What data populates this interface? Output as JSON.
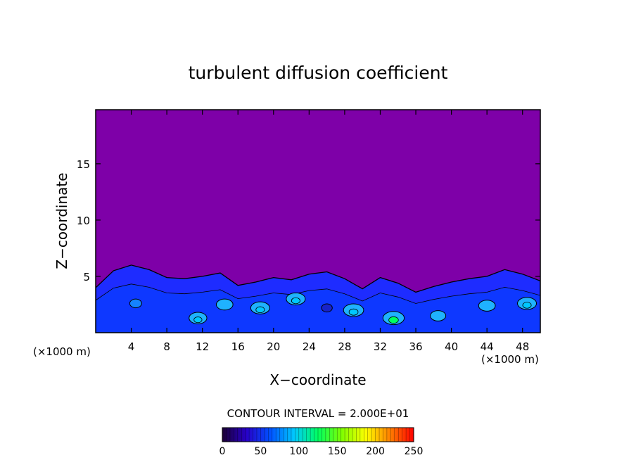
{
  "chart_data": {
    "type": "heatmap",
    "title": "turbulent diffusion coefficient",
    "xlabel": "X−coordinate",
    "ylabel": "Z−coordinate",
    "x_unit_left": "(×1000 m)",
    "x_unit_right": "(×1000 m)",
    "xlim": [
      0,
      50
    ],
    "ylim": [
      0,
      19.8
    ],
    "x_ticks": [
      4,
      8,
      12,
      16,
      20,
      24,
      28,
      32,
      36,
      40,
      44,
      48
    ],
    "y_ticks": [
      5,
      10,
      15
    ],
    "contour_interval_label": "CONTOUR INTERVAL = 2.000E+01",
    "contour_interval": 20,
    "colorbar": {
      "range": [
        0,
        250
      ],
      "tick_values": [
        0,
        50,
        100,
        150,
        200,
        250
      ],
      "colors": [
        "#1a0033",
        "#2800c8",
        "#0050ff",
        "#00c8ff",
        "#00ff60",
        "#80ff00",
        "#ffff00",
        "#ff8000",
        "#ff0000"
      ]
    },
    "background_color": "#7e00a8",
    "turbulent_layer_color": "#1e2cff",
    "layer_top_profile": [
      [
        0,
        4.0
      ],
      [
        2,
        5.5
      ],
      [
        4,
        6.0
      ],
      [
        6,
        5.6
      ],
      [
        8,
        4.9
      ],
      [
        10,
        4.8
      ],
      [
        12,
        5.0
      ],
      [
        14,
        5.3
      ],
      [
        16,
        4.2
      ],
      [
        18,
        4.5
      ],
      [
        20,
        4.9
      ],
      [
        22,
        4.7
      ],
      [
        24,
        5.2
      ],
      [
        26,
        5.4
      ],
      [
        28,
        4.8
      ],
      [
        30,
        3.9
      ],
      [
        32,
        4.9
      ],
      [
        34,
        4.4
      ],
      [
        36,
        3.6
      ],
      [
        38,
        4.1
      ],
      [
        40,
        4.5
      ],
      [
        42,
        4.8
      ],
      [
        44,
        5.0
      ],
      [
        46,
        5.6
      ],
      [
        48,
        5.2
      ],
      [
        50,
        4.6
      ]
    ],
    "high_value_cells": [
      {
        "x": 4.5,
        "z": 2.6,
        "value": 30
      },
      {
        "x": 11.5,
        "z": 1.3,
        "value": 80
      },
      {
        "x": 14.5,
        "z": 2.5,
        "value": 70
      },
      {
        "x": 18.5,
        "z": 2.2,
        "value": 90
      },
      {
        "x": 22.5,
        "z": 3.0,
        "value": 90
      },
      {
        "x": 26.0,
        "z": 2.2,
        "value": 20
      },
      {
        "x": 29.0,
        "z": 2.0,
        "value": 100
      },
      {
        "x": 33.5,
        "z": 1.3,
        "value": 110
      },
      {
        "x": 38.5,
        "z": 1.5,
        "value": 60
      },
      {
        "x": 44.0,
        "z": 2.4,
        "value": 70
      },
      {
        "x": 48.5,
        "z": 2.6,
        "value": 90
      }
    ],
    "grid": false
  }
}
